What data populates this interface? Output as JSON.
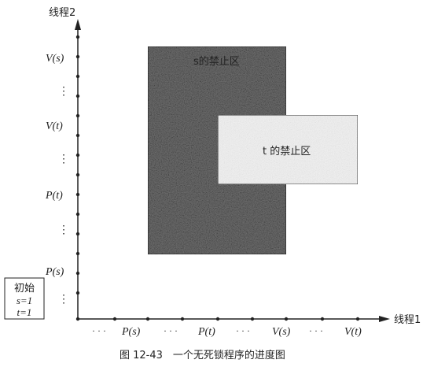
{
  "axes": {
    "y_label": "线程2",
    "x_label": "线程1",
    "y_ticks": [
      "V(s)",
      "⋮",
      "V(t)",
      "⋮",
      "P(t)",
      "⋮",
      "P(s)",
      "⋮"
    ],
    "x_ticks": [
      "· · ·",
      "P(s)",
      "· · ·",
      "P(t)",
      "· · ·",
      "V(s)",
      "· · ·",
      "V(t)"
    ]
  },
  "regions": {
    "s_forbidden": "s的禁止区",
    "t_forbidden": "t 的禁止区"
  },
  "initial_box": {
    "title": "初始",
    "line1": "s=1",
    "line2": "t=1"
  },
  "caption": "图 12-43　一个无死锁程序的进度图",
  "colors": {
    "s_region": "#6f6f6f",
    "t_region": "#f2f2f2",
    "axis": "#222222"
  }
}
